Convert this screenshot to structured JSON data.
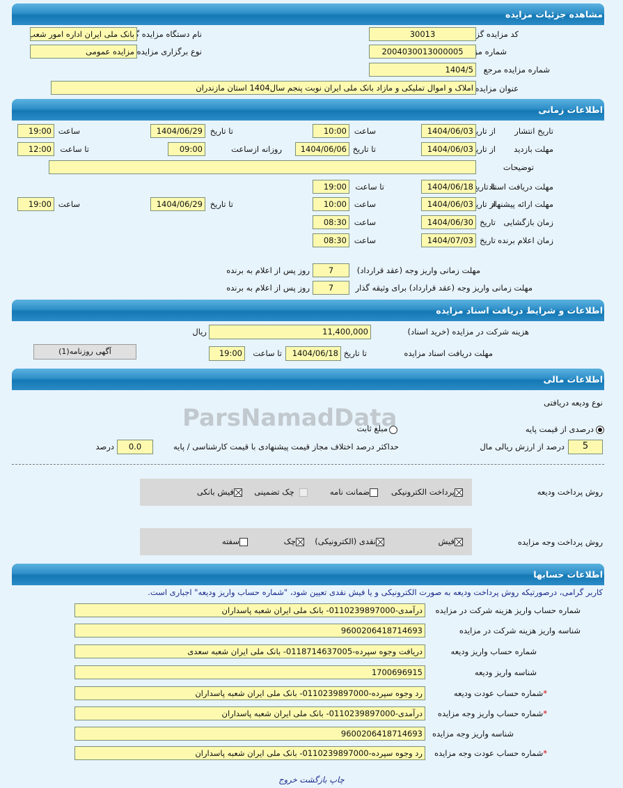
{
  "sections": {
    "details": "مشاهده جزئیات مزایده",
    "timing": "اطلاعات زمانی",
    "documents": "اطلاعات و شرایط دریافت اسناد مزایده",
    "financial": "اطلاعات مالی",
    "accounts": "اطلاعات حسابها"
  },
  "details": {
    "org_code_label": "کد مزایده گزار",
    "org_code": "30013",
    "org_name_label": "نام دستگاه مزایده گزار",
    "org_name": "بانک ملی ایران اداره امور شعب",
    "auction_no_label": "شماره مزایده",
    "auction_no": "2004030013000005",
    "type_label": "نوع برگزاری مزایده",
    "type": "مزایده عمومی",
    "ref_no_label": "شماره مزایده مرجع",
    "ref_no": "1404/5",
    "title_label": "عنوان مزایده",
    "title": "املاک و اموال تملیکی و مازاد بانک ملی ایران نوبت پنجم سال1404 استان مازندران"
  },
  "timing": {
    "labels": {
      "from_date": "از تاریخ",
      "to_date": "تا تاریخ",
      "time": "ساعت",
      "to_time": "تا ساعت",
      "date": "تاریخ",
      "daily_from": "روزانه ازساعت",
      "days_after": "روز پس از اعلام به برنده"
    },
    "publish": {
      "label": "تاریخ انتشار",
      "from_date": "1404/06/03",
      "from_time": "10:00",
      "to_date": "1404/06/29",
      "to_time": "19:00"
    },
    "visit": {
      "label": "مهلت بازدید",
      "from_date": "1404/06/03",
      "to_date": "1404/06/06",
      "daily_from": "09:00",
      "to_time": "12:00"
    },
    "description_label": "توضیحات",
    "description": "",
    "doc_receive": {
      "label": "مهلت دریافت اسناد",
      "to_date": "1404/06/18",
      "to_time": "19:00"
    },
    "offer": {
      "label": "مهلت ارائه پیشنهاد",
      "from_date": "1404/06/03",
      "from_time": "10:00",
      "to_date": "1404/06/29",
      "to_time": "19:00"
    },
    "opening": {
      "label": "زمان بازگشایی",
      "date": "1404/06/30",
      "time": "08:30"
    },
    "winner": {
      "label": "زمان اعلام برنده",
      "date": "1404/07/03",
      "time": "08:30"
    },
    "contract_pay": {
      "label": "مهلت زمانی واریز وجه (عقد قرارداد)",
      "days": "7"
    },
    "collateral_pay": {
      "label": "مهلت زمانی واریز وجه (عقد قرارداد) برای وثیقه گذار",
      "days": "7"
    }
  },
  "documents": {
    "fee_label": "هزینه شرکت در مزایده (خرید اسناد)",
    "fee": "11,400,000",
    "currency": "ریال",
    "deadline_label": "مهلت دریافت اسناد مزایده",
    "to_date": "1404/06/18",
    "to_time": "19:00",
    "newspaper_button": "آگهی روزنامه(1)"
  },
  "financial": {
    "deposit_type_label": "نوع ودیعه دریافتی",
    "percent_option": "درصدی از قیمت پایه",
    "percent_selected": true,
    "fixed_option": "مبلغ ثابت",
    "percent": "5",
    "percent_label": "درصد از ارزش ریالی مال",
    "max_diff_label": "حداکثر درصد اختلاف مجاز قیمت پیشنهادی با قیمت کارشناسی / پایه",
    "max_diff": "0.0",
    "unit": "درصد",
    "deposit_method_label": "روش پرداخت ودیعه",
    "deposit_methods": [
      {
        "label": "پرداخت الکترونیکی",
        "checked": true
      },
      {
        "label": "ضمانت نامه",
        "checked": false
      },
      {
        "label": "چک تضمینی",
        "checked": false,
        "disabled": true
      },
      {
        "label": "فیش بانکی",
        "checked": true
      }
    ],
    "payment_method_label": "روش پرداخت وجه مزایده",
    "payment_methods": [
      {
        "label": "فیش",
        "checked": true
      },
      {
        "label": "نقدی (الکترونیکی)",
        "checked": true
      },
      {
        "label": "چک",
        "checked": true
      },
      {
        "label": "سفته",
        "checked": false
      }
    ]
  },
  "accounts": {
    "note": "کاربر گرامی، درصورتیکه روش پرداخت ودیعه به صورت الکترونیکی و یا فیش نقدی تعیین شود، \"شماره حساب واریز ودیعه\" اجباری است.",
    "rows": [
      {
        "label": "شماره حساب واریز هزینه شرکت در مزایده",
        "value": "درآمدی-0110239897000- بانک ملی ایران شعبه پاسداران",
        "required": false
      },
      {
        "label": "شناسه واریز هزینه شرکت در مزایده",
        "value": "9600206418714693",
        "required": false
      },
      {
        "label": "شماره حساب واریز ودیعه",
        "value": "دریافت وجوه سپرده-0118714637005- بانک ملی ایران شعبه سعدی",
        "required": false
      },
      {
        "label": "شناسه واریز ودیعه",
        "value": "1700696915",
        "required": false
      },
      {
        "label": "شماره حساب عودت ودیعه",
        "value": "رد وجوه سپرده-0110239897000- بانک ملی ایران شعبه پاسداران",
        "required": true
      },
      {
        "label": "شماره حساب واریز وجه مزایده",
        "value": "درآمدی-0110239897000- بانک ملی ایران شعبه پاسداران",
        "required": true
      },
      {
        "label": "شناسه واریز وجه مزایده",
        "value": "9600206418714693",
        "required": false
      },
      {
        "label": "شماره حساب عودت وجه مزایده",
        "value": "رد وجوه سپرده-0110239897000- بانک ملی ایران شعبه پاسداران",
        "required": true
      }
    ]
  },
  "footer": {
    "print": "چاپ",
    "back": "بازگشت",
    "exit": "خروج"
  },
  "watermark": "ParsNamadData"
}
